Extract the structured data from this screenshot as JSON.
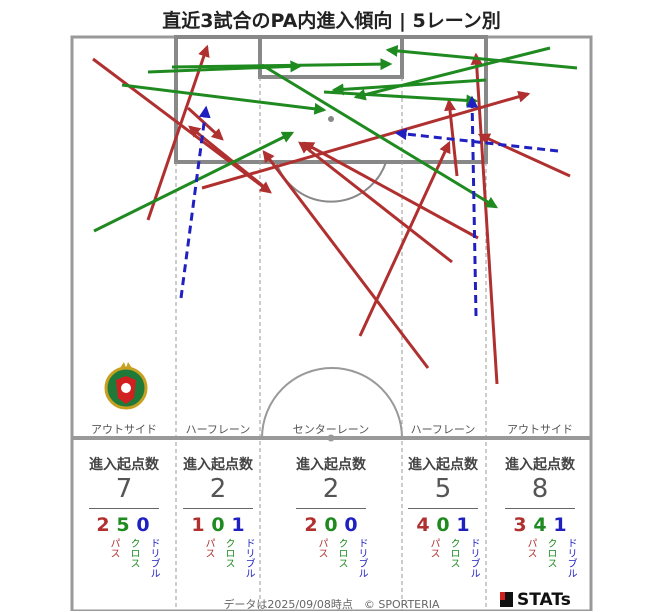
{
  "title": "直近3試合のPA内進入傾向 | 5レーン別",
  "lanes": [
    {
      "label": "アウトサイド",
      "total": "7",
      "pass": "2",
      "cross": "5",
      "dribble": "0"
    },
    {
      "label": "ハーフレーン",
      "total": "2",
      "pass": "1",
      "cross": "0",
      "dribble": "1"
    },
    {
      "label": "センターレーン",
      "total": "2",
      "pass": "2",
      "cross": "0",
      "dribble": "0"
    },
    {
      "label": "ハーフレーン",
      "total": "5",
      "pass": "4",
      "cross": "0",
      "dribble": "1"
    },
    {
      "label": "アウトサイド",
      "total": "8",
      "pass": "3",
      "cross": "4",
      "dribble": "1"
    }
  ],
  "stat_header": "進入起点数",
  "labels": {
    "pass": "パス",
    "cross": "クロス",
    "dribble": "ドリブル"
  },
  "colors": {
    "pass": "#b03030",
    "cross": "#1f8a1f",
    "dribble": "#2020c0",
    "line": "#888888"
  },
  "footer": "データは2025/09/08時点　© SPORTERIA",
  "brand": "STATs",
  "club_crest": "club-crest-icon"
}
